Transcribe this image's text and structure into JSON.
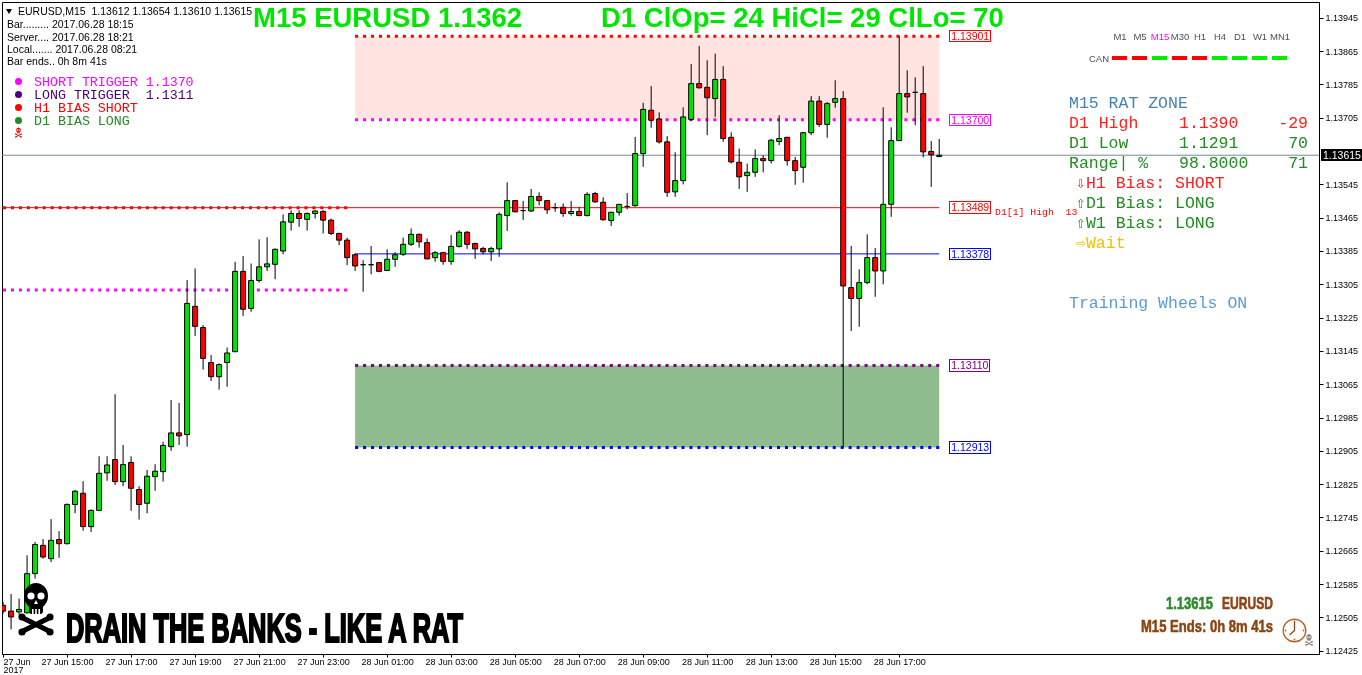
{
  "chart_data": {
    "type": "candlestick",
    "title": "M15 EURUSD 1.1362",
    "subtitle": "D1 ClOp= 24 HiCl= 29 ClLo= 70",
    "x": [
      "2017-06-27T13:00",
      "2017-06-27T13:15",
      "2017-06-27T13:30",
      "2017-06-27T13:45",
      "2017-06-27T14:00",
      "2017-06-27T14:15",
      "2017-06-27T14:30",
      "2017-06-27T14:45",
      "2017-06-27T15:00",
      "2017-06-27T15:15",
      "2017-06-27T15:30",
      "2017-06-27T15:45",
      "2017-06-27T16:00",
      "2017-06-27T16:15",
      "2017-06-27T16:30",
      "2017-06-27T16:45",
      "2017-06-27T17:00",
      "2017-06-27T17:15",
      "2017-06-27T17:30",
      "2017-06-27T17:45",
      "2017-06-27T18:00",
      "2017-06-27T18:15",
      "2017-06-27T18:30",
      "2017-06-27T18:45",
      "2017-06-27T19:00",
      "2017-06-27T19:15",
      "2017-06-27T19:30",
      "2017-06-27T19:45",
      "2017-06-27T20:00",
      "2017-06-27T20:15",
      "2017-06-27T20:30",
      "2017-06-27T20:45",
      "2017-06-27T21:00",
      "2017-06-27T21:15",
      "2017-06-27T21:30",
      "2017-06-27T21:45",
      "2017-06-27T22:00",
      "2017-06-27T22:15",
      "2017-06-27T22:30",
      "2017-06-27T22:45",
      "2017-06-27T23:00",
      "2017-06-27T23:15",
      "2017-06-27T23:30",
      "2017-06-27T23:45",
      "2017-06-28T00:00",
      "2017-06-28T00:15",
      "2017-06-28T00:30",
      "2017-06-28T00:45",
      "2017-06-28T01:00",
      "2017-06-28T01:15",
      "2017-06-28T01:30",
      "2017-06-28T01:45",
      "2017-06-28T02:00",
      "2017-06-28T02:15",
      "2017-06-28T02:30",
      "2017-06-28T02:45",
      "2017-06-28T03:00",
      "2017-06-28T03:15",
      "2017-06-28T03:30",
      "2017-06-28T03:45",
      "2017-06-28T04:00",
      "2017-06-28T04:15",
      "2017-06-28T04:30",
      "2017-06-28T04:45",
      "2017-06-28T05:00",
      "2017-06-28T05:15",
      "2017-06-28T05:30",
      "2017-06-28T05:45",
      "2017-06-28T06:00",
      "2017-06-28T06:15",
      "2017-06-28T06:30",
      "2017-06-28T06:45",
      "2017-06-28T07:00",
      "2017-06-28T07:15",
      "2017-06-28T07:30",
      "2017-06-28T07:45",
      "2017-06-28T08:00",
      "2017-06-28T08:15",
      "2017-06-28T08:30",
      "2017-06-28T08:45",
      "2017-06-28T09:00",
      "2017-06-28T09:15",
      "2017-06-28T09:30",
      "2017-06-28T09:45",
      "2017-06-28T10:00",
      "2017-06-28T10:15",
      "2017-06-28T10:30",
      "2017-06-28T10:45",
      "2017-06-28T11:00",
      "2017-06-28T11:15",
      "2017-06-28T11:30",
      "2017-06-28T11:45",
      "2017-06-28T12:00",
      "2017-06-28T12:15",
      "2017-06-28T12:30",
      "2017-06-28T12:45",
      "2017-06-28T13:00",
      "2017-06-28T13:15",
      "2017-06-28T13:30",
      "2017-06-28T13:45",
      "2017-06-28T14:00",
      "2017-06-28T14:15",
      "2017-06-28T14:30",
      "2017-06-28T14:45",
      "2017-06-28T15:00",
      "2017-06-28T15:15",
      "2017-06-28T15:30",
      "2017-06-28T15:45",
      "2017-06-28T16:00",
      "2017-06-28T16:15",
      "2017-06-28T16:30",
      "2017-06-28T16:45",
      "2017-06-28T17:00",
      "2017-06-28T17:15",
      "2017-06-28T17:30",
      "2017-06-28T17:45",
      "2017-06-28T18:00",
      "2017-06-28T18:15"
    ],
    "ohlc": [
      [
        1.12534,
        1.12542,
        1.12514,
        1.1252
      ],
      [
        1.1252,
        1.12561,
        1.12476,
        1.12506
      ],
      [
        1.12518,
        1.1255,
        1.1251,
        1.12524
      ],
      [
        1.12516,
        1.12654,
        1.12514,
        1.1261
      ],
      [
        1.1261,
        1.12686,
        1.12598,
        1.1268
      ],
      [
        1.12678,
        1.12693,
        1.12646,
        1.1265
      ],
      [
        1.12646,
        1.12741,
        1.12638,
        1.1269
      ],
      [
        1.12692,
        1.12712,
        1.12648,
        1.12682
      ],
      [
        1.12682,
        1.12779,
        1.1268,
        1.12776
      ],
      [
        1.12776,
        1.12811,
        1.12755,
        1.12808
      ],
      [
        1.12803,
        1.12832,
        1.12713,
        1.12723
      ],
      [
        1.12723,
        1.12764,
        1.1271,
        1.12762
      ],
      [
        1.12762,
        1.12892,
        1.12761,
        1.12851
      ],
      [
        1.12852,
        1.12892,
        1.12833,
        1.12871
      ],
      [
        1.12884,
        1.13041,
        1.12823,
        1.12831
      ],
      [
        1.12831,
        1.12919,
        1.1282,
        1.12872
      ],
      [
        1.12877,
        1.12892,
        1.12761,
        1.12815
      ],
      [
        1.12812,
        1.1282,
        1.1274,
        1.12776
      ],
      [
        1.12779,
        1.12859,
        1.12755,
        1.12844
      ],
      [
        1.12843,
        1.12873,
        1.12809,
        1.12856
      ],
      [
        1.12855,
        1.12927,
        1.12831,
        1.12918
      ],
      [
        1.12915,
        1.13027,
        1.12905,
        1.12948
      ],
      [
        1.12948,
        1.1302,
        1.12919,
        1.12941
      ],
      [
        1.12944,
        1.13315,
        1.12915,
        1.13259
      ],
      [
        1.13252,
        1.13343,
        1.13181,
        1.13204
      ],
      [
        1.13201,
        1.13207,
        1.131,
        1.13127
      ],
      [
        1.13117,
        1.13135,
        1.13073,
        1.13083
      ],
      [
        1.13083,
        1.13115,
        1.13052,
        1.13112
      ],
      [
        1.13117,
        1.13153,
        1.13059,
        1.1314
      ],
      [
        1.13143,
        1.13359,
        1.13143,
        1.13336
      ],
      [
        1.13336,
        1.13373,
        1.13229,
        1.13245
      ],
      [
        1.13247,
        1.13355,
        1.13239,
        1.13314
      ],
      [
        1.13314,
        1.13413,
        1.13309,
        1.13347
      ],
      [
        1.13347,
        1.13418,
        1.13337,
        1.13354
      ],
      [
        1.13353,
        1.13391,
        1.13317,
        1.13389
      ],
      [
        1.13385,
        1.13473,
        1.13377,
        1.13455
      ],
      [
        1.13454,
        1.13483,
        1.13434,
        1.13475
      ],
      [
        1.13475,
        1.13483,
        1.13443,
        1.13463
      ],
      [
        1.13461,
        1.13478,
        1.13434,
        1.13475
      ],
      [
        1.13475,
        1.13483,
        1.13463,
        1.13481
      ],
      [
        1.1348,
        1.13483,
        1.13427,
        1.13459
      ],
      [
        1.13459,
        1.13463,
        1.13423,
        1.13427
      ],
      [
        1.13427,
        1.13429,
        1.13399,
        1.13411
      ],
      [
        1.13411,
        1.13417,
        1.13351,
        1.13369
      ],
      [
        1.13376,
        1.13379,
        1.13337,
        1.13349
      ],
      [
        1.13352,
        1.13363,
        1.13287,
        1.13352
      ],
      [
        1.13352,
        1.13397,
        1.13329,
        1.13352
      ],
      [
        1.13357,
        1.13358,
        1.13334,
        1.13336
      ],
      [
        1.13338,
        1.13389,
        1.13337,
        1.13365
      ],
      [
        1.13365,
        1.13382,
        1.13347,
        1.13376
      ],
      [
        1.13377,
        1.13417,
        1.13373,
        1.13401
      ],
      [
        1.13401,
        1.13439,
        1.13397,
        1.13425
      ],
      [
        1.13425,
        1.13427,
        1.13393,
        1.13407
      ],
      [
        1.13405,
        1.13415,
        1.13365,
        1.13366
      ],
      [
        1.13369,
        1.13385,
        1.13359,
        1.13381
      ],
      [
        1.13381,
        1.13383,
        1.13352,
        1.1336
      ],
      [
        1.1336,
        1.13423,
        1.13352,
        1.13396
      ],
      [
        1.13396,
        1.13435,
        1.13393,
        1.1343
      ],
      [
        1.1343,
        1.13433,
        1.1339,
        1.13401
      ],
      [
        1.13403,
        1.13405,
        1.13366,
        1.1339
      ],
      [
        1.13391,
        1.13395,
        1.13377,
        1.13383
      ],
      [
        1.13383,
        1.13395,
        1.13361,
        1.13391
      ],
      [
        1.1339,
        1.13478,
        1.13371,
        1.13473
      ],
      [
        1.1347,
        1.1355,
        1.13433,
        1.13506
      ],
      [
        1.13506,
        1.13507,
        1.13478,
        1.13479
      ],
      [
        1.13482,
        1.13505,
        1.13459,
        1.13482
      ],
      [
        1.13481,
        1.13534,
        1.13479,
        1.13516
      ],
      [
        1.13516,
        1.13526,
        1.13495,
        1.13506
      ],
      [
        1.13506,
        1.13507,
        1.13474,
        1.13484
      ],
      [
        1.13489,
        1.135,
        1.13479,
        1.13489
      ],
      [
        1.1349,
        1.13499,
        1.13467,
        1.13475
      ],
      [
        1.13475,
        1.13505,
        1.1347,
        1.1348
      ],
      [
        1.1348,
        1.13491,
        1.13469,
        1.1347
      ],
      [
        1.1347,
        1.13526,
        1.13468,
        1.13521
      ],
      [
        1.13523,
        1.13527,
        1.13501,
        1.13503
      ],
      [
        1.13502,
        1.13514,
        1.13458,
        1.1346
      ],
      [
        1.13458,
        1.13479,
        1.13445,
        1.13478
      ],
      [
        1.13478,
        1.13498,
        1.1347,
        1.13497
      ],
      [
        1.13492,
        1.13524,
        1.13485,
        1.13492
      ],
      [
        1.13494,
        1.13659,
        1.13491,
        1.13619
      ],
      [
        1.13619,
        1.13741,
        1.13587,
        1.13725
      ],
      [
        1.13723,
        1.13781,
        1.13681,
        1.13699
      ],
      [
        1.13702,
        1.13718,
        1.13643,
        1.13647
      ],
      [
        1.13647,
        1.13661,
        1.13515,
        1.13526
      ],
      [
        1.13527,
        1.13622,
        1.13515,
        1.13554
      ],
      [
        1.13554,
        1.1373,
        1.13545,
        1.13707
      ],
      [
        1.13701,
        1.13834,
        1.13697,
        1.13787
      ],
      [
        1.13787,
        1.13877,
        1.13775,
        1.13777
      ],
      [
        1.13778,
        1.13843,
        1.13663,
        1.13753
      ],
      [
        1.13751,
        1.13859,
        1.13707,
        1.13797
      ],
      [
        1.13797,
        1.13829,
        1.13647,
        1.13655
      ],
      [
        1.13658,
        1.1367,
        1.13595,
        1.13599
      ],
      [
        1.13598,
        1.13631,
        1.13534,
        1.13563
      ],
      [
        1.13566,
        1.13595,
        1.13527,
        1.13574
      ],
      [
        1.13574,
        1.13629,
        1.13563,
        1.13607
      ],
      [
        1.13607,
        1.13615,
        1.13574,
        1.13602
      ],
      [
        1.13602,
        1.13654,
        1.13595,
        1.13651
      ],
      [
        1.13648,
        1.13711,
        1.13639,
        1.13655
      ],
      [
        1.13658,
        1.13659,
        1.1359,
        1.13602
      ],
      [
        1.13602,
        1.13611,
        1.13544,
        1.13578
      ],
      [
        1.13586,
        1.13671,
        1.13549,
        1.13669
      ],
      [
        1.13669,
        1.13757,
        1.13663,
        1.13745
      ],
      [
        1.13745,
        1.13757,
        1.13683,
        1.13689
      ],
      [
        1.13689,
        1.13743,
        1.13657,
        1.13739
      ],
      [
        1.13742,
        1.13795,
        1.13729,
        1.13751
      ],
      [
        1.13751,
        1.13769,
        1.12913,
        1.13301
      ],
      [
        1.13297,
        1.13397,
        1.13193,
        1.13271
      ],
      [
        1.13271,
        1.13341,
        1.13203,
        1.13309
      ],
      [
        1.13309,
        1.13425,
        1.13305,
        1.13369
      ],
      [
        1.13369,
        1.13392,
        1.13275,
        1.13337
      ],
      [
        1.13337,
        1.1373,
        1.13305,
        1.13497
      ],
      [
        1.13497,
        1.13682,
        1.13467,
        1.1365
      ],
      [
        1.1365,
        1.13901,
        1.1365,
        1.13763
      ],
      [
        1.13763,
        1.13819,
        1.13717,
        1.13755
      ],
      [
        1.13766,
        1.13802,
        1.13687,
        1.13766
      ],
      [
        1.13763,
        1.13829,
        1.1361,
        1.13623
      ],
      [
        1.13624,
        1.13649,
        1.13539,
        1.13616
      ],
      [
        1.13612,
        1.13654,
        1.1361,
        1.13615
      ]
    ],
    "colors": [
      "#ff0000",
      "#ff0000",
      "#00e000",
      "#00e000",
      "#00e000",
      "#ff0000",
      "#00e000",
      "#ff0000",
      "#00e000",
      "#00e000",
      "#ff0000",
      "#00e000",
      "#00e000",
      "#00e000",
      "#ff0000",
      "#00e000",
      "#ff0000",
      "#ff0000",
      "#00e000",
      "#00e000",
      "#00e000",
      "#00e000",
      "#ff0000",
      "#00e000",
      "#ff0000",
      "#ff0000",
      "#ff0000",
      "#00e000",
      "#00e000",
      "#00e000",
      "#ff0000",
      "#00e000",
      "#00e000",
      "#00e000",
      "#00e000",
      "#00e000",
      "#00e000",
      "#ff0000",
      "#00e000",
      "#00e000",
      "#ff0000",
      "#ff0000",
      "#ff0000",
      "#ff0000",
      "#ff0000",
      "#000000",
      "#000000",
      "#ff0000",
      "#00e000",
      "#00e000",
      "#00e000",
      "#00e000",
      "#ff0000",
      "#ff0000",
      "#00e000",
      "#ff0000",
      "#00e000",
      "#00e000",
      "#ff0000",
      "#ff0000",
      "#ff0000",
      "#00e000",
      "#00e000",
      "#00e000",
      "#ff0000",
      "#000000",
      "#00e000",
      "#ff0000",
      "#ff0000",
      "#000000",
      "#ff0000",
      "#00e000",
      "#ff0000",
      "#00e000",
      "#ff0000",
      "#ff0000",
      "#00e000",
      "#00e000",
      "#000000",
      "#00e000",
      "#00e000",
      "#ff0000",
      "#ff0000",
      "#ff0000",
      "#00e000",
      "#00e000",
      "#00e000",
      "#ff0000",
      "#ff0000",
      "#00e000",
      "#ff0000",
      "#ff0000",
      "#ff0000",
      "#00e000",
      "#00e000",
      "#ff0000",
      "#00e000",
      "#00e000",
      "#ff0000",
      "#ff0000",
      "#00e000",
      "#00e000",
      "#ff0000",
      "#00e000",
      "#00e000",
      "#ff0000",
      "#ff0000",
      "#00e000",
      "#00e000",
      "#ff0000",
      "#00e000",
      "#00e000",
      "#00e000",
      "#ff0000",
      "#000000",
      "#ff0000",
      "#ff0000",
      "#00e000"
    ],
    "series": [
      {
        "type": "line",
        "name": "1.13901",
        "color": "#ff0000",
        "line_style": "dotted",
        "x": [
          "2017-06-28T00:00",
          "2017-06-28T18:15"
        ],
        "values": [
          1.13901,
          1.13901
        ]
      },
      {
        "type": "line",
        "name": "1.13700",
        "color": "#ff00ff",
        "line_style": "dotted",
        "x": [
          "2017-06-28T00:00",
          "2017-06-28T18:15"
        ],
        "values": [
          1.137,
          1.137
        ]
      },
      {
        "type": "line",
        "name": "1.13489",
        "color": "#ff0000",
        "line_style": "solid",
        "x": [
          "2017-06-27T12:58",
          "2017-06-28T18:15"
        ],
        "values": [
          1.13489,
          1.13489
        ]
      },
      {
        "type": "line",
        "color": "#ff0000",
        "line_style": "dotted",
        "x": [
          "2017-06-27T13:00",
          "2017-06-27T23:45"
        ],
        "values": [
          1.13489,
          1.13489
        ]
      },
      {
        "type": "line",
        "name": "1.13378",
        "color": "#0000ff",
        "line_style": "solid",
        "x": [
          "2017-06-28T00:00",
          "2017-06-28T18:15"
        ],
        "values": [
          1.13378,
          1.13378
        ]
      },
      {
        "type": "line",
        "color": "#ff00ff",
        "line_style": "dotted",
        "x": [
          "2017-06-27T13:00",
          "2017-06-27T23:45"
        ],
        "values": [
          1.13291,
          1.13291
        ]
      },
      {
        "type": "line",
        "name": "1.13110",
        "color": "#800080",
        "line_style": "dotted",
        "x": [
          "2017-06-28T00:00",
          "2017-06-28T18:15"
        ],
        "values": [
          1.1311,
          1.1311
        ]
      },
      {
        "type": "line",
        "name": "1.12913",
        "color": "#0000ff",
        "line_style": "dotted",
        "x": [
          "2017-06-28T00:00",
          "2017-06-28T18:15"
        ],
        "values": [
          1.12913,
          1.12913
        ]
      }
    ],
    "bands": [
      {
        "axis": "y",
        "from": 1.137,
        "to": 1.13901,
        "color": "#ffe4e1"
      },
      {
        "axis": "y",
        "from": 1.12913,
        "to": 1.1311,
        "color": "#8fbc8f"
      }
    ],
    "ref_lines": [
      {
        "axis": "y",
        "value": 1.13615,
        "label": "1.13615",
        "color": "#778899"
      }
    ],
    "xlim": [
      "2017-06-27T12:58",
      "2017-06-29T06:07"
    ],
    "xticks": [
      {
        "value": "2017-06-27T13:00",
        "label": "27 Jun 2017"
      },
      {
        "value": "2017-06-27T15:00",
        "label": "27 Jun 15:00"
      },
      {
        "value": "2017-06-27T17:00",
        "label": "27 Jun 17:00"
      },
      {
        "value": "2017-06-27T19:00",
        "label": "27 Jun 19:00"
      },
      {
        "value": "2017-06-27T21:00",
        "label": "27 Jun 21:00"
      },
      {
        "value": "2017-06-27T23:00",
        "label": "27 Jun 23:00"
      },
      {
        "value": "2017-06-28T01:00",
        "label": "28 Jun 01:00"
      },
      {
        "value": "2017-06-28T03:00",
        "label": "28 Jun 03:00"
      },
      {
        "value": "2017-06-28T05:00",
        "label": "28 Jun 05:00"
      },
      {
        "value": "2017-06-28T07:00",
        "label": "28 Jun 07:00"
      },
      {
        "value": "2017-06-28T09:00",
        "label": "28 Jun 09:00"
      },
      {
        "value": "2017-06-28T11:00",
        "label": "28 Jun 11:00"
      },
      {
        "value": "2017-06-28T13:00",
        "label": "28 Jun 13:00"
      },
      {
        "value": "2017-06-28T15:00",
        "label": "28 Jun 15:00"
      },
      {
        "value": "2017-06-28T17:00",
        "label": "28 Jun 17:00"
      }
    ],
    "ylim": [
      1.12417,
      1.13983
    ],
    "yticks": [
      1.12425,
      1.12505,
      1.12585,
      1.12665,
      1.12745,
      1.12825,
      1.12905,
      1.12985,
      1.13065,
      1.13145,
      1.13225,
      1.13305,
      1.13385,
      1.13465,
      1.13545,
      1.13705,
      1.13785,
      1.13865,
      1.13945
    ],
    "annotations": [
      "EURUSD,M15  1.13612 1.13654 1.13610 1.13615",
      "Bar......... 2017.06.28 18:15",
      "Server.... 2017.06.28 18:21",
      "Local....... 2017.06.28 08:21",
      "Bar ends.. 0h 8m 41s",
      "SHORT TRIGGER 1.1370",
      "LONG TRIGGER  1.1311",
      "H1 BIAS SHORT",
      "D1 BIAS LONG",
      "M1",
      "M5",
      "M15",
      "M30",
      "H1",
      "H4",
      "D1",
      "W1",
      "MN1",
      "CAN",
      "M15 RAT ZONE",
      "D1 High",
      "1.1390",
      "-29",
      "D1 Low",
      "1.1291",
      "70",
      "Range| %",
      "98.8000",
      "71",
      "⇩H1 Bias: SHORT",
      "⇧D1 Bias: LONG",
      "⇧W1 Bias: LONG",
      "⇨Wait",
      "Training Wheels ON",
      "D1[1] High  13",
      "DRAIN THE BANKS - LIKE A RAT",
      "1.13615",
      "EURUSD",
      "M15 Ends: 0h 8m 41s"
    ]
  }
}
